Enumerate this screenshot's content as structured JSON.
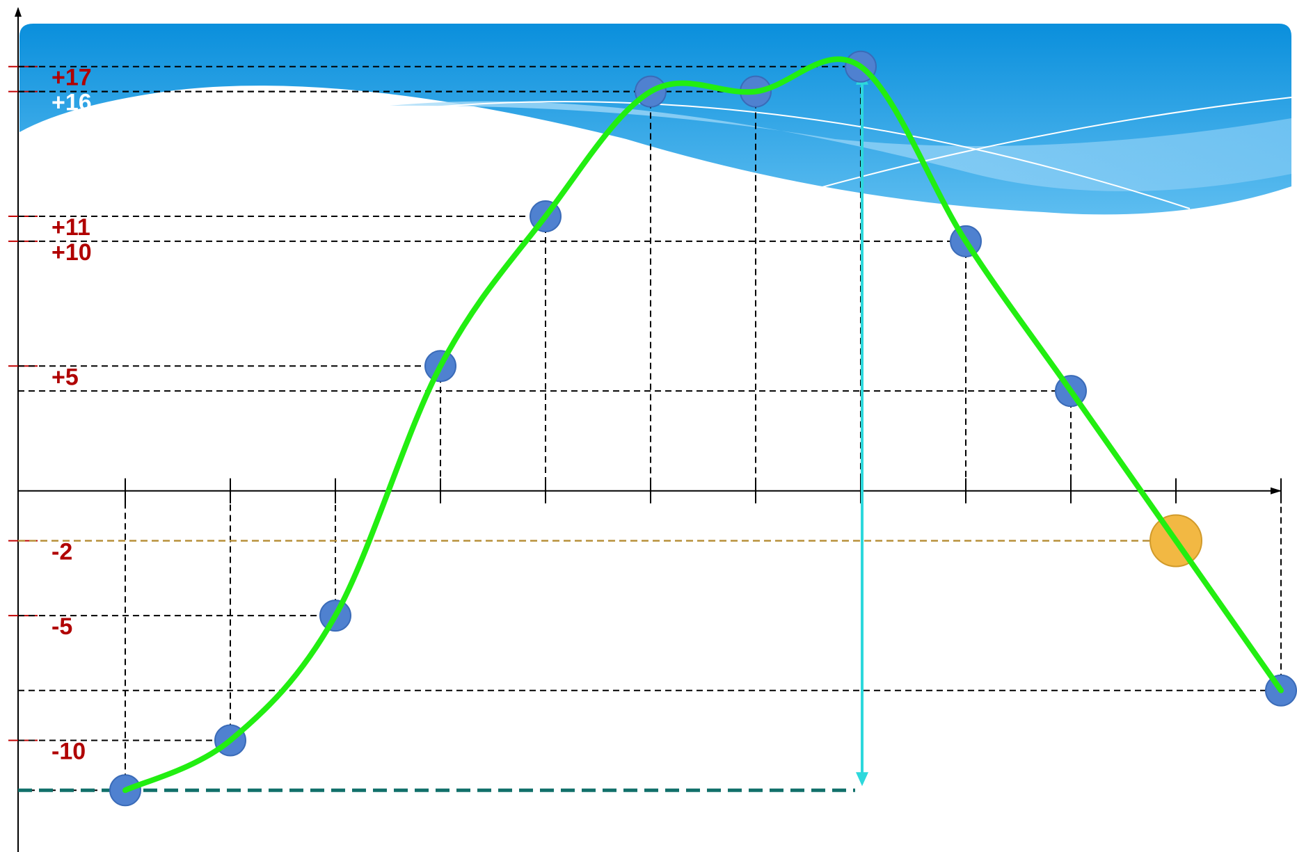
{
  "chart_data": {
    "type": "line",
    "categories": [
      null,
      null,
      null,
      null,
      null,
      null,
      null,
      null,
      null,
      null,
      null,
      null
    ],
    "values": [
      -12,
      -10,
      -5,
      5,
      11,
      16,
      16,
      17,
      10,
      4,
      -2,
      -8
    ],
    "color": "#22ee11",
    "point_colors": [
      "#4f81d0",
      "#4f81d0",
      "#4f81d0",
      "#4f81d0",
      "#4f81d0",
      "#4f81d0",
      "#4f81d0",
      "#4f81d0",
      "#4f81d0",
      "#4f81d0",
      "#f2b843",
      "#4f81d0"
    ],
    "ylim": [
      -14,
      19
    ],
    "yticks": [
      {
        "value": 17,
        "label": "+17"
      },
      {
        "value": 16,
        "label": "+16"
      },
      {
        "value": 11,
        "label": "+11"
      },
      {
        "value": 10,
        "label": "+10"
      },
      {
        "value": 5,
        "label": "+5"
      },
      -2,
      -5,
      -10
    ],
    "ytick_label_colors": [
      "#b00000",
      "#ffffff",
      "#b00000",
      "#b00000",
      "#b00000",
      "#b00000",
      "#b00000",
      "#b00000"
    ]
  }
}
